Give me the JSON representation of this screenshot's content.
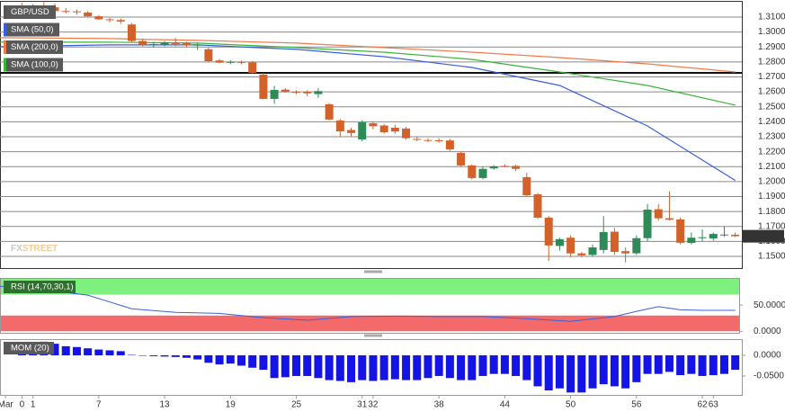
{
  "chart_data": [
    {
      "type": "candlestick",
      "name": "GBP/USD",
      "up_color": "#2e8b57",
      "down_color": "#d2622a",
      "open": [
        1.317,
        1.316,
        1.3175,
        1.3165,
        1.314,
        1.3138,
        1.313,
        1.3105,
        1.3085,
        1.308,
        1.305,
        1.294,
        1.2915,
        1.2915,
        1.2925,
        1.2925,
        1.2912,
        1.2885,
        1.281,
        1.2798,
        1.28,
        1.2797,
        1.2715,
        1.2553,
        1.2615,
        1.26,
        1.26,
        1.2585,
        1.2517,
        1.2408,
        1.2345,
        1.2282,
        1.239,
        1.2375,
        1.236,
        1.2355,
        1.2285,
        1.2278,
        1.2276,
        1.2275,
        1.2192,
        1.2108,
        1.2024,
        1.2088,
        1.2105,
        1.2105,
        1.203,
        1.1915,
        1.1759,
        1.157,
        1.1625,
        1.152,
        1.151,
        1.1543,
        1.1665,
        1.1535,
        1.1521,
        1.1622,
        1.1815,
        1.1755,
        1.1747,
        1.159,
        1.1625,
        1.162,
        1.1645,
        1.1645
      ],
      "high": [
        1.3195,
        1.3185,
        1.32,
        1.319,
        1.316,
        1.315,
        1.314,
        1.3112,
        1.3095,
        1.309,
        1.306,
        1.295,
        1.2935,
        1.294,
        1.296,
        1.2935,
        1.293,
        1.2895,
        1.282,
        1.2812,
        1.2808,
        1.2805,
        1.2725,
        1.264,
        1.2625,
        1.261,
        1.261,
        1.2625,
        1.2525,
        1.242,
        1.236,
        1.241,
        1.24,
        1.2385,
        1.238,
        1.2365,
        1.23,
        1.229,
        1.229,
        1.2285,
        1.22,
        1.2115,
        1.21,
        1.211,
        1.2115,
        1.2112,
        1.206,
        1.1925,
        1.177,
        1.1625,
        1.164,
        1.153,
        1.158,
        1.177,
        1.169,
        1.156,
        1.164,
        1.185,
        1.185,
        1.1935,
        1.176,
        1.166,
        1.168,
        1.166,
        1.17,
        1.166
      ],
      "low": [
        1.315,
        1.314,
        1.3155,
        1.313,
        1.3125,
        1.3115,
        1.31,
        1.308,
        1.3065,
        1.3055,
        1.293,
        1.2905,
        1.2895,
        1.2905,
        1.2905,
        1.29,
        1.288,
        1.28,
        1.279,
        1.2785,
        1.2785,
        1.272,
        1.255,
        1.252,
        1.2595,
        1.2585,
        1.257,
        1.256,
        1.241,
        1.23,
        1.23,
        1.227,
        1.235,
        1.232,
        1.232,
        1.228,
        1.227,
        1.2265,
        1.226,
        1.2205,
        1.21,
        1.2015,
        1.2015,
        1.208,
        1.2095,
        1.207,
        1.19,
        1.175,
        1.147,
        1.154,
        1.1495,
        1.1495,
        1.15,
        1.152,
        1.151,
        1.146,
        1.151,
        1.16,
        1.174,
        1.174,
        1.158,
        1.158,
        1.16,
        1.1605,
        1.163,
        1.163
      ],
      "close": [
        1.316,
        1.3175,
        1.3165,
        1.314,
        1.3138,
        1.3135,
        1.3105,
        1.3085,
        1.308,
        1.307,
        1.294,
        1.2915,
        1.292,
        1.293,
        1.292,
        1.291,
        1.2915,
        1.2805,
        1.2795,
        1.28,
        1.2795,
        1.2727,
        1.2553,
        1.2613,
        1.26,
        1.2598,
        1.259,
        1.2605,
        1.2415,
        1.2336,
        1.2325,
        1.2396,
        1.237,
        1.233,
        1.2335,
        1.229,
        1.228,
        1.2275,
        1.2274,
        1.2215,
        1.2108,
        1.2024,
        1.2085,
        1.2102,
        1.2104,
        1.2085,
        1.1909,
        1.1759,
        1.1573,
        1.1615,
        1.152,
        1.1507,
        1.156,
        1.1663,
        1.153,
        1.152,
        1.1622,
        1.1813,
        1.1755,
        1.1745,
        1.1591,
        1.1625,
        1.1628,
        1.165,
        1.1646,
        1.1635
      ],
      "series": [
        {
          "name": "SMA (50,0)",
          "color": "#3a5fdc",
          "x": [
            -2,
            8,
            16,
            25,
            33,
            41,
            49,
            57,
            65
          ],
          "values": [
            1.2902,
            1.2914,
            1.2914,
            1.2884,
            1.2835,
            1.2763,
            1.2643,
            1.2372,
            1.2008
          ]
        },
        {
          "name": "SMA (200,0)",
          "color": "#f07a4a",
          "x": [
            -2,
            8,
            16,
            25,
            33,
            41,
            49,
            57,
            65
          ],
          "values": [
            1.2962,
            1.2956,
            1.2944,
            1.2926,
            1.2896,
            1.2865,
            1.2829,
            1.2787,
            1.2733
          ]
        },
        {
          "name": "SMA (100,0)",
          "color": "#3bb33b",
          "x": [
            -2,
            8,
            16,
            25,
            33,
            41,
            49,
            57,
            65
          ],
          "values": [
            1.2932,
            1.2932,
            1.2926,
            1.2896,
            1.2865,
            1.2817,
            1.2733,
            1.2643,
            1.2511
          ]
        }
      ],
      "hline": 1.2727,
      "last_price": 1.16347,
      "watermark": [
        "FX",
        "STREET"
      ],
      "xlim": [
        -2,
        65.6
      ],
      "ylim": [
        1.1422,
        1.3202
      ],
      "yticks": [
        {
          "value": 1.31,
          "label": "1.3100"
        },
        {
          "value": 1.3,
          "label": "1.3000"
        },
        {
          "value": 1.29,
          "label": "1.2900"
        },
        {
          "value": 1.28,
          "label": "1.2800"
        },
        {
          "value": 1.27,
          "label": "1.2700"
        },
        {
          "value": 1.26,
          "label": "1.2600"
        },
        {
          "value": 1.25,
          "label": "1.2500"
        },
        {
          "value": 1.24,
          "label": "1.2400"
        },
        {
          "value": 1.23,
          "label": "1.2300"
        },
        {
          "value": 1.22,
          "label": "1.2200"
        },
        {
          "value": 1.21,
          "label": "1.2100"
        },
        {
          "value": 1.2,
          "label": "1.2000"
        },
        {
          "value": 1.19,
          "label": "1.1900"
        },
        {
          "value": 1.18,
          "label": "1.1800"
        },
        {
          "value": 1.17,
          "label": "1.1700"
        },
        {
          "value": 1.16,
          "label": "1.1600"
        },
        {
          "value": 1.15,
          "label": "1.1500"
        }
      ],
      "xticks": [
        {
          "value": -1.5,
          "label": "Mar"
        },
        0,
        1,
        7,
        13,
        19,
        25,
        31,
        32,
        38,
        44,
        50,
        56,
        62,
        63
      ]
    },
    {
      "type": "line",
      "name": "RSI (14,70,30,1)",
      "color": "#3a5fdc",
      "x": [
        -2,
        2,
        6,
        10,
        14,
        18,
        22,
        26,
        30,
        34,
        38,
        42,
        46,
        50,
        54,
        56,
        58,
        60,
        62,
        65
      ],
      "values": [
        86,
        79,
        69,
        43,
        36,
        34,
        26,
        21,
        28,
        29,
        28,
        28,
        24,
        19,
        28,
        38,
        47,
        41,
        40,
        40
      ],
      "bands": [
        {
          "from": 70,
          "to": 100,
          "color": "#7ef07e"
        },
        {
          "from": 0,
          "to": 30,
          "color": "#f46a6a"
        }
      ],
      "xlim": [
        -2,
        65.6
      ],
      "ylim": [
        -3,
        100
      ],
      "yticks": [
        {
          "value": 50,
          "label": "50.0000"
        },
        {
          "value": 0,
          "label": "0.0000"
        }
      ]
    },
    {
      "type": "bar",
      "name": "MOM (20)",
      "color": "#1414e6",
      "values": [
        0.013,
        0.02,
        0.033,
        0.028,
        0.022,
        0.02,
        0.017,
        0.014,
        0.012,
        0.01,
        0.001,
        -0.001,
        -0.002,
        -0.003,
        -0.004,
        -0.006,
        -0.01,
        -0.018,
        -0.022,
        -0.02,
        -0.025,
        -0.03,
        -0.035,
        -0.055,
        -0.053,
        -0.05,
        -0.05,
        -0.055,
        -0.06,
        -0.062,
        -0.065,
        -0.06,
        -0.062,
        -0.06,
        -0.058,
        -0.06,
        -0.06,
        -0.055,
        -0.05,
        -0.055,
        -0.06,
        -0.06,
        -0.05,
        -0.045,
        -0.045,
        -0.05,
        -0.06,
        -0.075,
        -0.085,
        -0.08,
        -0.09,
        -0.09,
        -0.08,
        -0.07,
        -0.075,
        -0.08,
        -0.065,
        -0.045,
        -0.045,
        -0.04,
        -0.048,
        -0.045,
        -0.05,
        -0.048,
        -0.045,
        -0.035
      ],
      "xlim": [
        -2,
        65.6
      ],
      "ylim": [
        -0.098,
        0.037
      ],
      "yticks": [
        {
          "value": 0,
          "label": "0.0000"
        },
        {
          "value": -0.05,
          "label": "-0.0500"
        }
      ]
    }
  ]
}
